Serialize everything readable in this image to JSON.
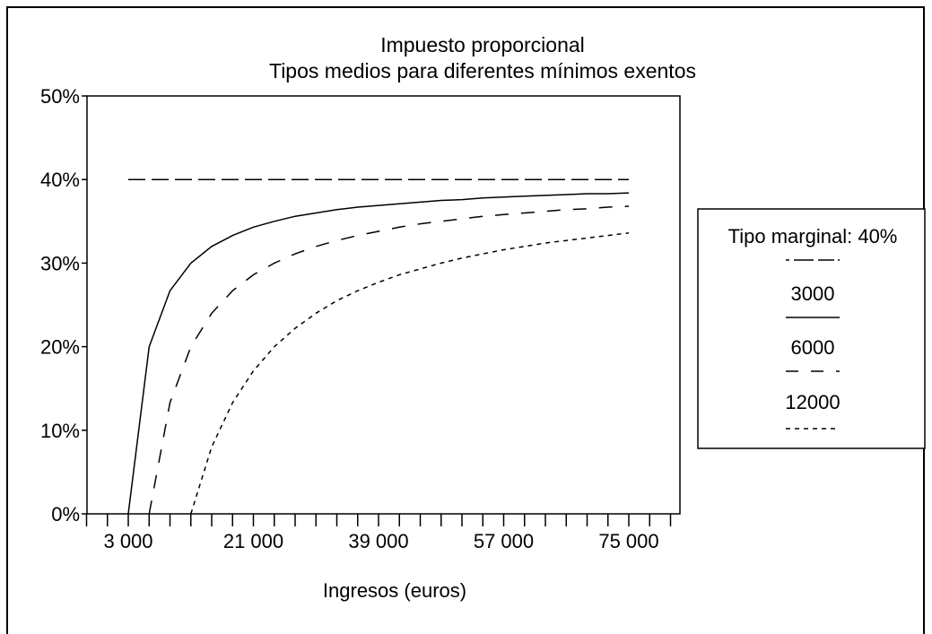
{
  "chart_data": {
    "type": "line",
    "title": "Impuesto proporcional",
    "subtitle": "Tipos medios para diferentes mínimos exentos",
    "xlabel": "Ingresos (euros)",
    "ylabel": "",
    "xlim": [
      0,
      78000
    ],
    "ylim": [
      0,
      50
    ],
    "x_tick_labels": [
      "3 000",
      "21 000",
      "39 000",
      "57 000",
      "75 000"
    ],
    "x_tick_values": [
      3000,
      21000,
      39000,
      57000,
      75000
    ],
    "y_tick_labels": [
      "0%",
      "10%",
      "20%",
      "30%",
      "40%",
      "50%"
    ],
    "y_tick_values": [
      0,
      10,
      20,
      30,
      40,
      50
    ],
    "x": [
      3000,
      6000,
      9000,
      12000,
      15000,
      18000,
      21000,
      24000,
      27000,
      30000,
      33000,
      36000,
      39000,
      42000,
      45000,
      48000,
      51000,
      54000,
      57000,
      60000,
      63000,
      66000,
      69000,
      72000,
      75000
    ],
    "grid": false,
    "legend_position": "right",
    "legend_title": "Tipo marginal: 40%",
    "series": [
      {
        "name": "",
        "style": "long-dash",
        "values": [
          40,
          40,
          40,
          40,
          40,
          40,
          40,
          40,
          40,
          40,
          40,
          40,
          40,
          40,
          40,
          40,
          40,
          40,
          40,
          40,
          40,
          40,
          40,
          40,
          40
        ]
      },
      {
        "name": "3000",
        "style": "solid",
        "values": [
          0,
          20,
          26.7,
          30,
          32,
          33.3,
          34.3,
          35,
          35.6,
          36,
          36.4,
          36.7,
          36.9,
          37.1,
          37.3,
          37.5,
          37.6,
          37.8,
          37.9,
          38,
          38.1,
          38.2,
          38.3,
          38.3,
          38.4
        ]
      },
      {
        "name": "6000",
        "style": "dash",
        "values": [
          null,
          0,
          13.3,
          20,
          24,
          26.7,
          28.6,
          30,
          31.1,
          32,
          32.7,
          33.3,
          33.8,
          34.3,
          34.7,
          35,
          35.3,
          35.6,
          35.8,
          36,
          36.2,
          36.4,
          36.5,
          36.7,
          36.8
        ]
      },
      {
        "name": "12000",
        "style": "short-dash",
        "values": [
          null,
          null,
          null,
          0,
          8,
          13.3,
          17.1,
          20,
          22.2,
          24,
          25.5,
          26.7,
          27.7,
          28.6,
          29.3,
          30,
          30.6,
          31.1,
          31.6,
          32,
          32.4,
          32.7,
          33,
          33.3,
          33.6
        ]
      }
    ]
  }
}
